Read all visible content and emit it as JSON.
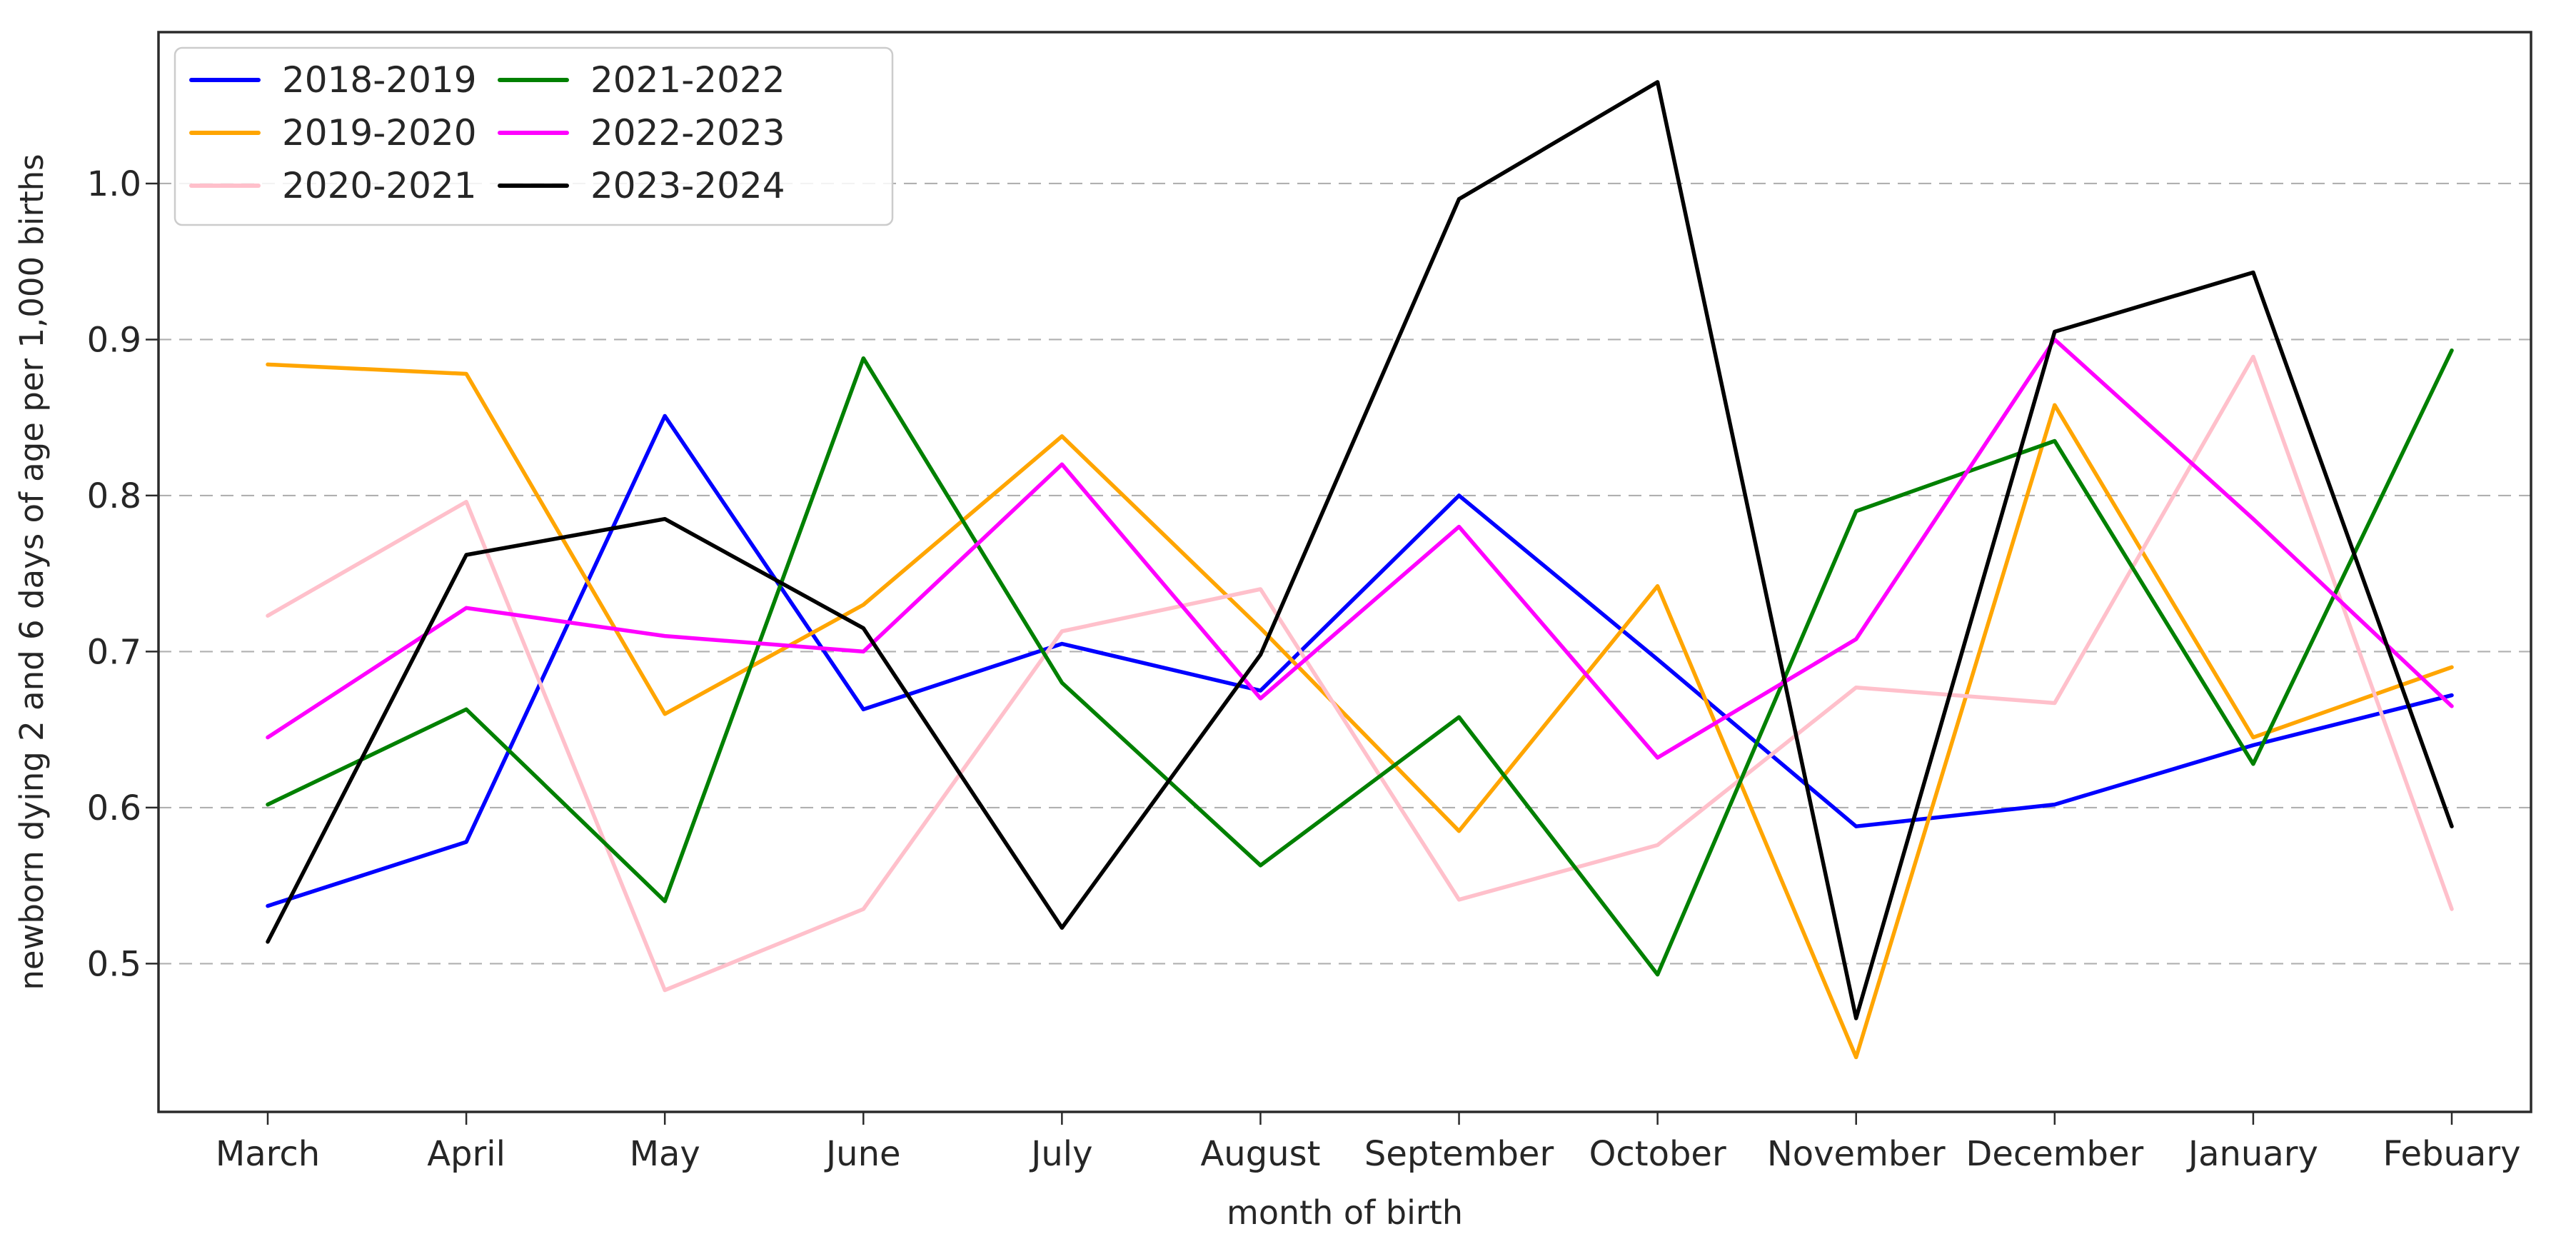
{
  "chart_data": {
    "type": "line",
    "title": "",
    "xlabel": "month of birth",
    "ylabel": "newborn dying 2 and 6 days of age per 1,000 births",
    "categories": [
      "March",
      "April",
      "May",
      "June",
      "July",
      "August",
      "September",
      "October",
      "November",
      "December",
      "January",
      "Febuary"
    ],
    "yticks": [
      "0.5",
      "0.6",
      "0.7",
      "0.8",
      "0.9",
      "1.0"
    ],
    "ylim": [
      0.405,
      1.097
    ],
    "grid": "horizontal-dashed",
    "legend": {
      "position": "upper left",
      "columns": 2
    },
    "series": [
      {
        "name": "2018-2019",
        "color": "#0000ff",
        "values": [
          0.537,
          0.578,
          0.851,
          0.663,
          0.705,
          0.675,
          0.8,
          0.695,
          0.588,
          0.602,
          0.64,
          0.672
        ]
      },
      {
        "name": "2019-2020",
        "color": "#ffa500",
        "values": [
          0.884,
          0.878,
          0.66,
          0.73,
          0.838,
          0.715,
          0.585,
          0.742,
          0.44,
          0.858,
          0.645,
          0.69
        ]
      },
      {
        "name": "2020-2021",
        "color": "#ffc0cb",
        "values": [
          0.723,
          0.796,
          0.483,
          0.535,
          0.713,
          0.74,
          0.541,
          0.576,
          0.677,
          0.667,
          0.889,
          0.535
        ]
      },
      {
        "name": "2021-2022",
        "color": "#008000",
        "values": [
          0.602,
          0.663,
          0.54,
          0.888,
          0.68,
          0.563,
          0.658,
          0.493,
          0.79,
          0.835,
          0.628,
          0.893
        ]
      },
      {
        "name": "2022-2023",
        "color": "#ff00ff",
        "values": [
          0.645,
          0.728,
          0.71,
          0.7,
          0.82,
          0.67,
          0.78,
          0.632,
          0.708,
          0.9,
          0.785,
          0.665
        ]
      },
      {
        "name": "2023-2024",
        "color": "#000000",
        "values": [
          0.514,
          0.762,
          0.785,
          0.715,
          0.523,
          0.698,
          0.99,
          1.065,
          0.465,
          0.905,
          0.943,
          0.588
        ]
      }
    ],
    "axis_color": "#2b2b2b",
    "grid_color": "#b0b0b0",
    "text_color": "#262626",
    "legend_border_color": "#cccccc"
  }
}
